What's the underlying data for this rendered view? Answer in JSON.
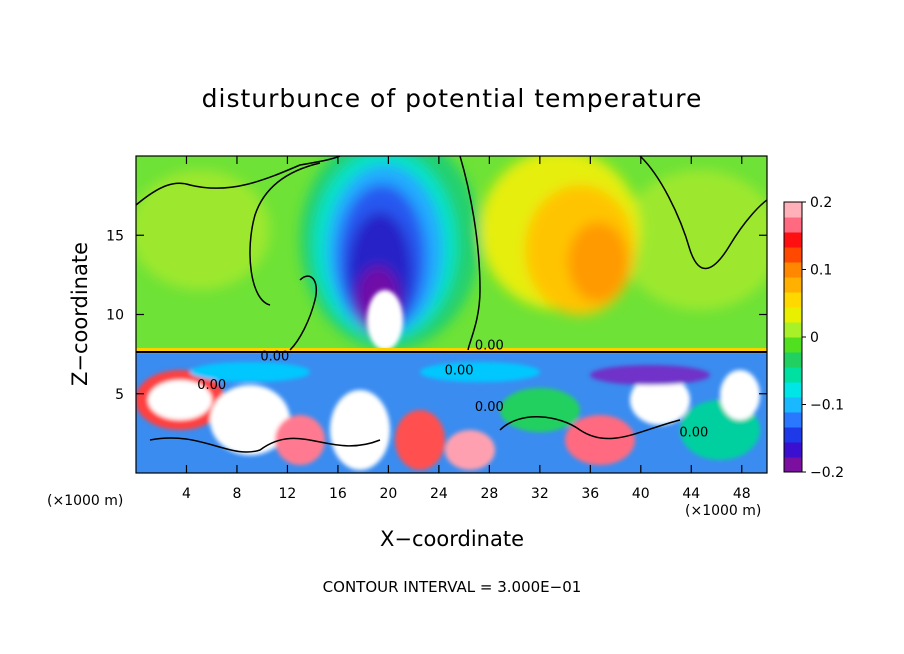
{
  "chart_data": {
    "type": "heatmap",
    "title": "disturbunce of potential temperature",
    "xlabel": "X−coordinate",
    "ylabel": "Z−coordinate",
    "x_unit_left": "(×1000 m)",
    "x_unit_right": "(×1000 m)",
    "footnote": "CONTOUR INTERVAL = 3.000E−01",
    "xlim": [
      0,
      50
    ],
    "ylim": [
      0,
      20
    ],
    "x_ticks": [
      {
        "v": 4,
        "label": "4"
      },
      {
        "v": 8,
        "label": "8"
      },
      {
        "v": 12,
        "label": "12"
      },
      {
        "v": 16,
        "label": "16"
      },
      {
        "v": 20,
        "label": "20"
      },
      {
        "v": 24,
        "label": "24"
      },
      {
        "v": 28,
        "label": "28"
      },
      {
        "v": 32,
        "label": "32"
      },
      {
        "v": 36,
        "label": "36"
      },
      {
        "v": 40,
        "label": "40"
      },
      {
        "v": 44,
        "label": "44"
      },
      {
        "v": 48,
        "label": "48"
      }
    ],
    "y_ticks": [
      {
        "v": 5,
        "label": "5"
      },
      {
        "v": 10,
        "label": "10"
      },
      {
        "v": 15,
        "label": "15"
      }
    ],
    "colorbar": {
      "min": -0.2,
      "max": 0.2,
      "ticks": [
        {
          "v": 0.2,
          "label": "0.2"
        },
        {
          "v": 0.1,
          "label": "0.1"
        },
        {
          "v": 0,
          "label": "0"
        },
        {
          "v": -0.1,
          "label": "−0.1"
        },
        {
          "v": -0.2,
          "label": "−0.2"
        }
      ],
      "colors": [
        "#7a0fa0",
        "#3a0fd0",
        "#1e3ae8",
        "#2a78ff",
        "#19b8ff",
        "#00e6e6",
        "#00e0a0",
        "#20d060",
        "#50e020",
        "#a8f028",
        "#e8f000",
        "#ffd800",
        "#ffb000",
        "#ff8800",
        "#ff4800",
        "#ff1010",
        "#ff6a80",
        "#ffb0b8"
      ]
    },
    "contour_labels": [
      {
        "text": "0.00",
        "x": 28.0,
        "y": 7.8
      },
      {
        "text": "0.00",
        "x": 11.0,
        "y": 7.1
      },
      {
        "text": "0.00",
        "x": 6.0,
        "y": 5.3
      },
      {
        "text": "0.00",
        "x": 25.6,
        "y": 6.2
      },
      {
        "text": "0.00",
        "x": 28.0,
        "y": 3.9
      },
      {
        "text": "0.00",
        "x": 44.2,
        "y": 2.3
      }
    ]
  }
}
